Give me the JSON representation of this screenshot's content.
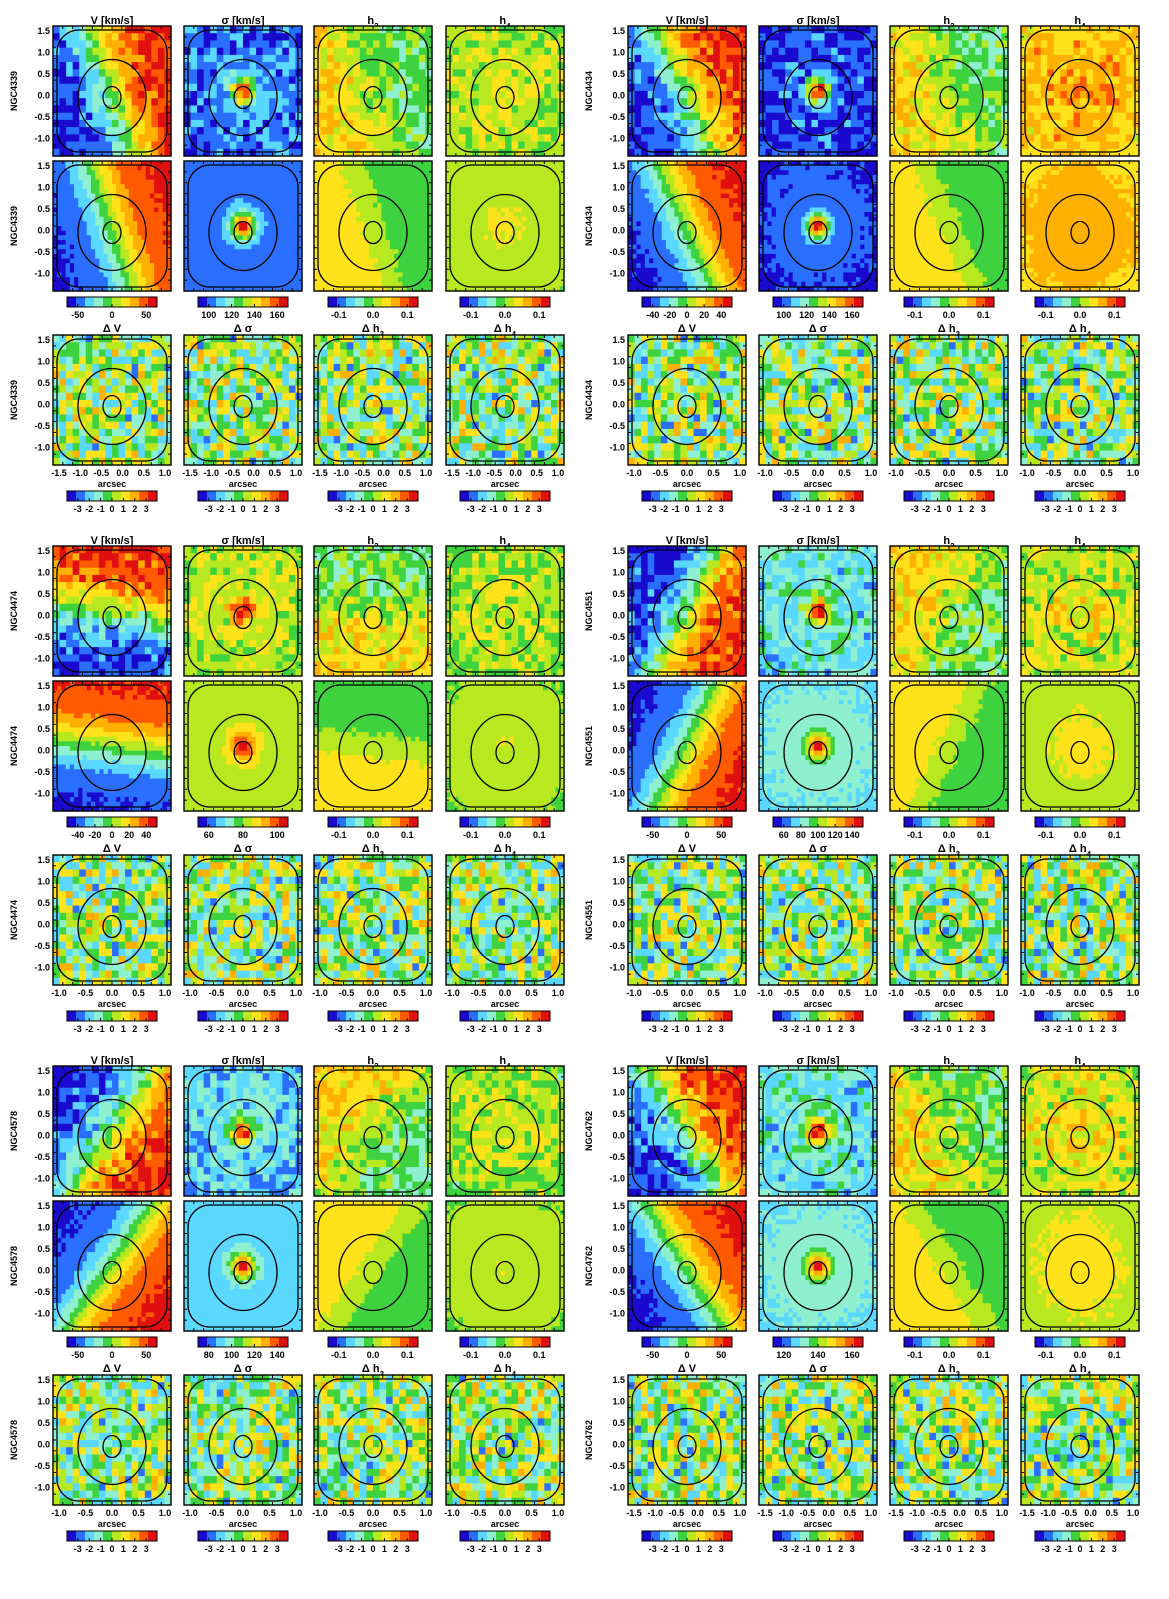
{
  "figure": {
    "colorscale": [
      "#1a0ad0",
      "#2a6fff",
      "#5ad8ff",
      "#8ff0d0",
      "#3fd23f",
      "#b8e81f",
      "#ffe21a",
      "#ffb000",
      "#ff5a00",
      "#e01010",
      "#ffe0e0"
    ],
    "panel_background": "#ffffff"
  },
  "galaxies": [
    {
      "name": "NGC4339",
      "kin_titles": [
        "V [km/s]",
        "σ [km/s]",
        "h3",
        "h4"
      ],
      "res_titles": [
        "Δ V",
        "Δ σ",
        "Δ h3",
        "Δ h4"
      ],
      "y_ticks": [
        "1.5",
        "1.0",
        "0.5",
        "0.0",
        "-0.5",
        "-1.0"
      ],
      "kin_colorbar_ticks": [
        [
          "-50",
          "0",
          "50"
        ],
        [
          "100",
          "120",
          "140",
          "160"
        ],
        [
          "-0.1",
          "0.0",
          "0.1"
        ],
        [
          "-0.1",
          "0.0",
          "0.1"
        ]
      ],
      "x_ticks": [
        "-1.5",
        "-1.0",
        "-0.5",
        "0.0",
        "0.5",
        "1.0"
      ],
      "x_label": "arcsec",
      "res_colorbar_ticks": [
        "-3",
        "-2",
        "-1",
        "0",
        "1",
        "2",
        "3"
      ]
    },
    {
      "name": "NGC4434",
      "kin_titles": [
        "V [km/s]",
        "σ [km/s]",
        "h3",
        "h4"
      ],
      "res_titles": [
        "Δ V",
        "Δ σ",
        "Δ h3",
        "Δ h4"
      ],
      "y_ticks": [
        "1.5",
        "1.0",
        "0.5",
        "0.0",
        "-0.5",
        "-1.0"
      ],
      "kin_colorbar_ticks": [
        [
          "-40",
          "-20",
          "0",
          "20",
          "40"
        ],
        [
          "100",
          "120",
          "140",
          "160"
        ],
        [
          "-0.1",
          "0.0",
          "0.1"
        ],
        [
          "-0.1",
          "0.0",
          "0.1"
        ]
      ],
      "x_ticks": [
        "-1.0",
        "-0.5",
        "0.0",
        "0.5",
        "1.0"
      ],
      "x_label": "arcsec",
      "res_colorbar_ticks": [
        "-3",
        "-2",
        "-1",
        "0",
        "1",
        "2",
        "3"
      ]
    },
    {
      "name": "NGC4474",
      "kin_titles": [
        "V [km/s]",
        "σ [km/s]",
        "h3",
        "h4"
      ],
      "res_titles": [
        "Δ V",
        "Δ σ",
        "Δ h3",
        "Δ h4"
      ],
      "y_ticks": [
        "1.5",
        "1.0",
        "0.5",
        "0.0",
        "-0.5",
        "-1.0"
      ],
      "kin_colorbar_ticks": [
        [
          "-40",
          "-20",
          "0",
          "20",
          "40"
        ],
        [
          "60",
          "80",
          "100"
        ],
        [
          "-0.1",
          "0.0",
          "0.1"
        ],
        [
          "-0.1",
          "0.0",
          "0.1"
        ]
      ],
      "x_ticks": [
        "-1.0",
        "-0.5",
        "0.0",
        "0.5",
        "1.0"
      ],
      "x_label": "arcsec",
      "res_colorbar_ticks": [
        "-3",
        "-2",
        "-1",
        "0",
        "1",
        "2",
        "3"
      ]
    },
    {
      "name": "NGC4551",
      "kin_titles": [
        "V [km/s]",
        "σ [km/s]",
        "h3",
        "h4"
      ],
      "res_titles": [
        "Δ V",
        "Δ σ",
        "Δ h3",
        "Δ h4"
      ],
      "y_ticks": [
        "1.5",
        "1.0",
        "0.5",
        "0.0",
        "-0.5",
        "-1.0"
      ],
      "kin_colorbar_ticks": [
        [
          "-50",
          "0",
          "50"
        ],
        [
          "60",
          "80",
          "100",
          "120",
          "140"
        ],
        [
          "-0.1",
          "0.0",
          "0.1"
        ],
        [
          "-0.1",
          "0.0",
          "0.1"
        ]
      ],
      "x_ticks": [
        "-1.0",
        "-0.5",
        "0.0",
        "0.5",
        "1.0"
      ],
      "x_label": "arcsec",
      "res_colorbar_ticks": [
        "-3",
        "-2",
        "-1",
        "0",
        "1",
        "2",
        "3"
      ]
    },
    {
      "name": "NGC4578",
      "kin_titles": [
        "V [km/s]",
        "σ [km/s]",
        "h3",
        "h4"
      ],
      "res_titles": [
        "Δ V",
        "Δ σ",
        "Δ h3",
        "Δ h4"
      ],
      "y_ticks": [
        "1.5",
        "1.0",
        "0.5",
        "0.0",
        "-0.5",
        "-1.0"
      ],
      "kin_colorbar_ticks": [
        [
          "-50",
          "0",
          "50"
        ],
        [
          "80",
          "100",
          "120",
          "140"
        ],
        [
          "-0.1",
          "0.0",
          "0.1"
        ],
        [
          "-0.1",
          "0.0",
          "0.1"
        ]
      ],
      "x_ticks": [
        "-1.0",
        "-0.5",
        "0.0",
        "0.5",
        "1.0"
      ],
      "x_label": "arcsec",
      "res_colorbar_ticks": [
        "-3",
        "-2",
        "-1",
        "0",
        "1",
        "2",
        "3"
      ]
    },
    {
      "name": "NGC4762",
      "kin_titles": [
        "V [km/s]",
        "σ [km/s]",
        "h3",
        "h4"
      ],
      "res_titles": [
        "Δ V",
        "Δ σ",
        "Δ h3",
        "Δ h4"
      ],
      "y_ticks": [
        "1.5",
        "1.0",
        "0.5",
        "0.0",
        "-0.5",
        "-1.0"
      ],
      "kin_colorbar_ticks": [
        [
          "-50",
          "0",
          "50"
        ],
        [
          "120",
          "140",
          "160"
        ],
        [
          "-0.1",
          "0.0",
          "0.1"
        ],
        [
          "-0.1",
          "0.0",
          "0.1"
        ]
      ],
      "x_ticks": [
        "-1.5",
        "-1.0",
        "-0.5",
        "0.0",
        "0.5",
        "1.0"
      ],
      "x_label": "arcsec",
      "res_colorbar_ticks": [
        "-3",
        "-2",
        "-1",
        "0",
        "1",
        "2",
        "3"
      ]
    }
  ]
}
